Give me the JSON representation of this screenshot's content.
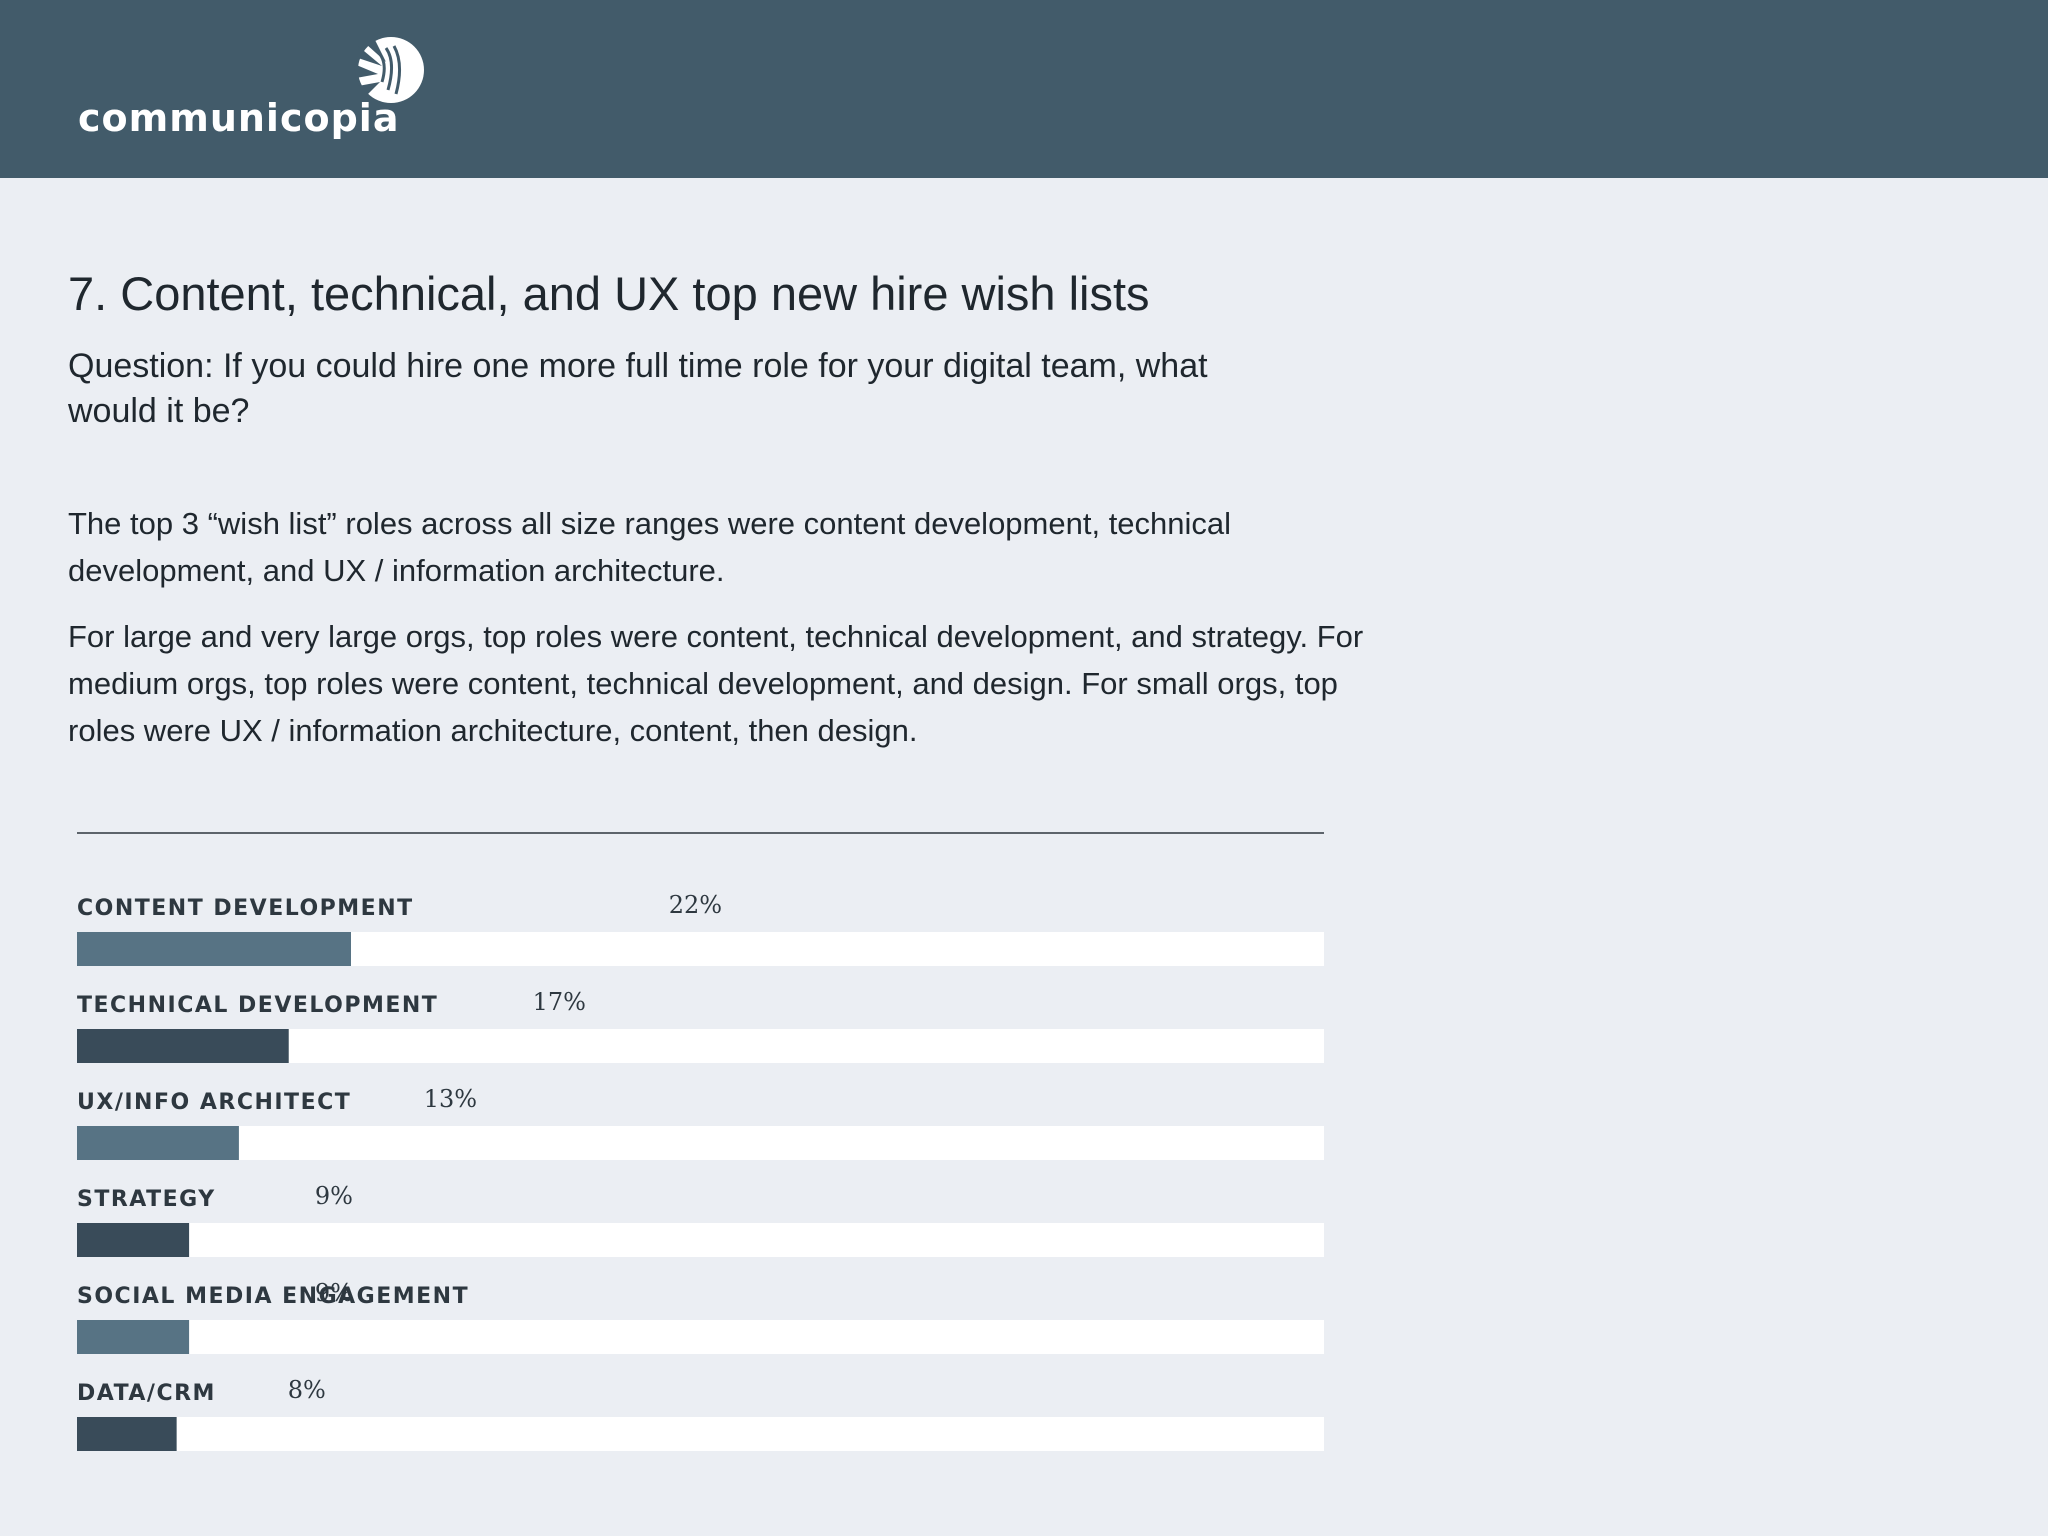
{
  "header": {
    "logo_text": "communicopia",
    "logo_icon": "communicopia-swirl-logo"
  },
  "title": "7. Content, technical, and UX top new hire wish lists",
  "question": "Question: If you could hire one more full time role for your digital team, what would it be?",
  "paragraphs": [
    "The top 3 “wish list” roles across all size ranges were content development, technical development, and UX / information architecture.",
    "For large and very large orgs, top roles were content, technical development, and strategy. For medium orgs, top roles were content, technical development, and design. For small orgs, top roles were UX / information architecture, content, then design."
  ],
  "colors": {
    "header_bg": "#425b6a",
    "bar_light": "#577384",
    "bar_dark": "#394b59",
    "track": "#ffffff"
  },
  "chart_data": {
    "type": "bar",
    "orientation": "horizontal",
    "categories": [
      "CONTENT DEVELOPMENT",
      "TECHNICAL DEVELOPMENT",
      "UX/INFO ARCHITECT",
      "STRATEGY",
      "SOCIAL MEDIA ENGAGEMENT",
      "DATA/CRM"
    ],
    "values": [
      22,
      17,
      13,
      9,
      9,
      8
    ],
    "value_labels": [
      "22%",
      "17%",
      "13%",
      "9%",
      "9%",
      "8%"
    ],
    "xlim": [
      0,
      100
    ],
    "title": "",
    "xlabel": "",
    "ylabel": "",
    "grid": false,
    "legend": "none"
  }
}
